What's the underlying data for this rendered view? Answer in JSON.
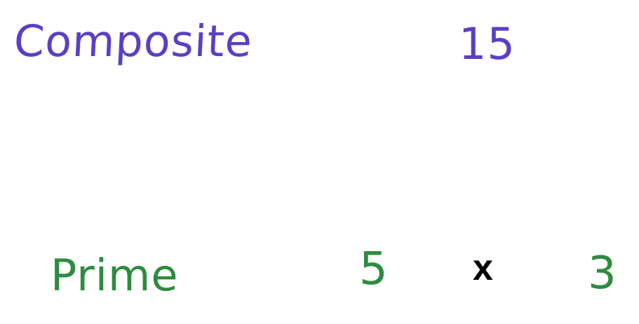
{
  "colors": {
    "composite": "#5b3fc4",
    "prime": "#2e8b3f",
    "operator": "#000000"
  },
  "composite": {
    "label": "Composite",
    "value": "15"
  },
  "prime": {
    "label": "Prime",
    "factor_a": "5",
    "operator": "x",
    "factor_b": "3"
  }
}
